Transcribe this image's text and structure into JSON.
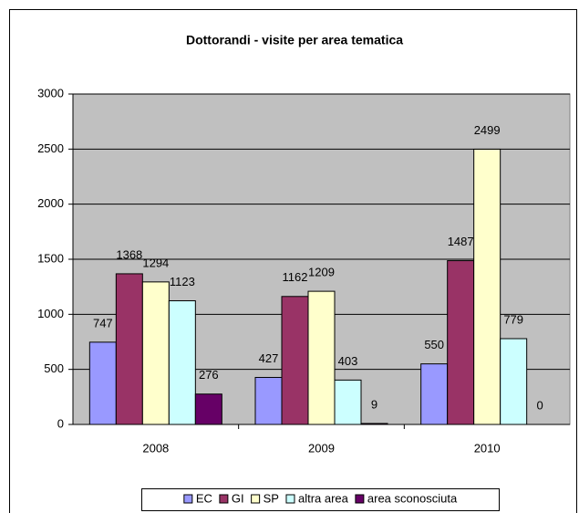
{
  "chart_data": {
    "type": "bar",
    "title": "Dottorandi - visite per area tematica",
    "categories": [
      "2008",
      "2009",
      "2010"
    ],
    "series": [
      {
        "name": "EC",
        "color": "#9999ff",
        "values": [
          747,
          427,
          550
        ]
      },
      {
        "name": "GI",
        "color": "#993366",
        "values": [
          1368,
          1162,
          1487
        ]
      },
      {
        "name": "SP",
        "color": "#ffffcc",
        "values": [
          1294,
          1209,
          2499
        ]
      },
      {
        "name": "altra area",
        "color": "#ccffff",
        "values": [
          1123,
          403,
          779
        ]
      },
      {
        "name": "area sconosciuta",
        "color": "#660066",
        "values": [
          276,
          9,
          0
        ]
      }
    ],
    "ylim": [
      0,
      3000
    ],
    "yticks": [
      0,
      500,
      1000,
      1500,
      2000,
      2500,
      3000
    ],
    "grid": true,
    "plot_background": "#c0c0c0",
    "legend": "bottom"
  }
}
